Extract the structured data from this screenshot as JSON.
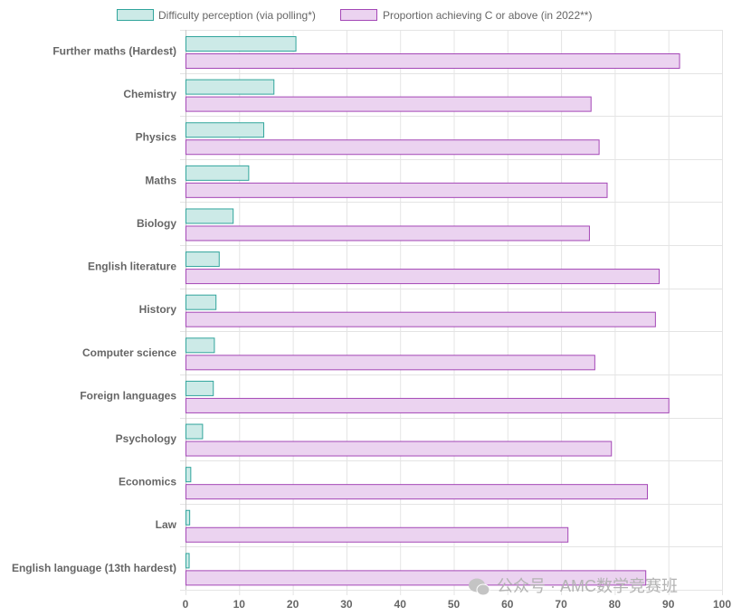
{
  "chart_data": {
    "type": "bar",
    "orientation": "horizontal",
    "categories": [
      "Further maths (Hardest)",
      "Chemistry",
      "Physics",
      "Maths",
      "Biology",
      "English literature",
      "History",
      "Computer science",
      "Foreign languages",
      "Psychology",
      "Economics",
      "Law",
      "English language (13th hardest)"
    ],
    "series": [
      {
        "name": "Difficulty perception (via polling*)",
        "fill": "#cceae7",
        "stroke": "#31a59c",
        "values": [
          20.5,
          16.4,
          14.5,
          11.7,
          8.8,
          6.2,
          5.6,
          5.3,
          5.1,
          3.1,
          0.9,
          0.7,
          0.6
        ]
      },
      {
        "name": "Proportion achieving C or above (in 2022**)",
        "fill": "#ebd3f0",
        "stroke": "#a447b6",
        "values": [
          92.0,
          75.5,
          77.0,
          78.5,
          75.2,
          88.2,
          87.5,
          76.2,
          90.0,
          79.3,
          86.0,
          71.2,
          85.7
        ]
      }
    ],
    "xlim": [
      0,
      100
    ],
    "xticks": [
      0,
      10,
      20,
      30,
      40,
      50,
      60,
      70,
      80,
      90,
      100
    ],
    "grid": true,
    "legend": "top"
  },
  "watermark": "公众号 · AMC数学竞赛班"
}
